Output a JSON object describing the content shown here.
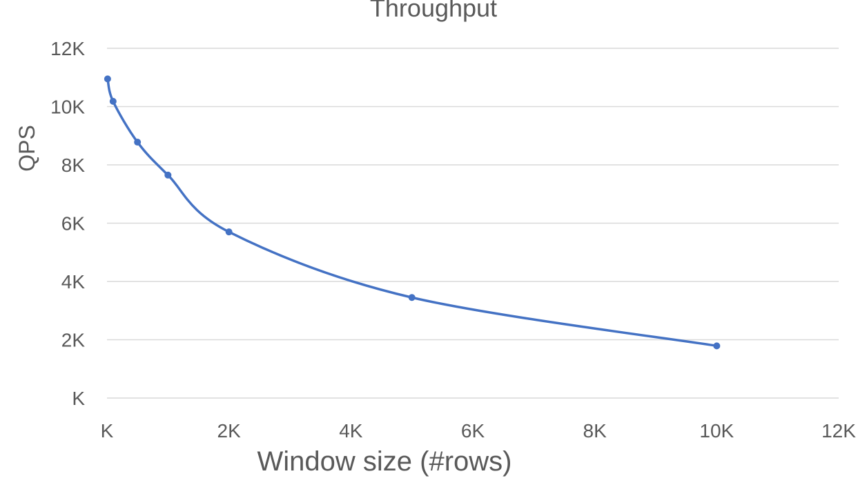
{
  "chart_data": {
    "type": "scatter",
    "title": "Throughput",
    "xlabel": "Window size (#rows)",
    "ylabel": "QPS",
    "xlim": [
      0,
      12000
    ],
    "ylim": [
      0,
      12000
    ],
    "x_ticks": [
      0,
      2000,
      4000,
      6000,
      8000,
      10000,
      12000
    ],
    "x_tick_labels": [
      "K",
      "2K",
      "4K",
      "6K",
      "8K",
      "10K",
      "12K"
    ],
    "y_ticks": [
      0,
      2000,
      4000,
      6000,
      8000,
      10000,
      12000
    ],
    "y_tick_labels": [
      "K",
      "2K",
      "4K",
      "6K",
      "8K",
      "10K",
      "12K"
    ],
    "grid": "horizontal",
    "legend": "none",
    "smooth": true,
    "series": [
      {
        "color": "#4472c4",
        "x": [
          10,
          100,
          500,
          1000,
          2000,
          5000,
          10000
        ],
        "y": [
          10950,
          10180,
          8780,
          7650,
          5700,
          3450,
          1790
        ]
      }
    ]
  }
}
